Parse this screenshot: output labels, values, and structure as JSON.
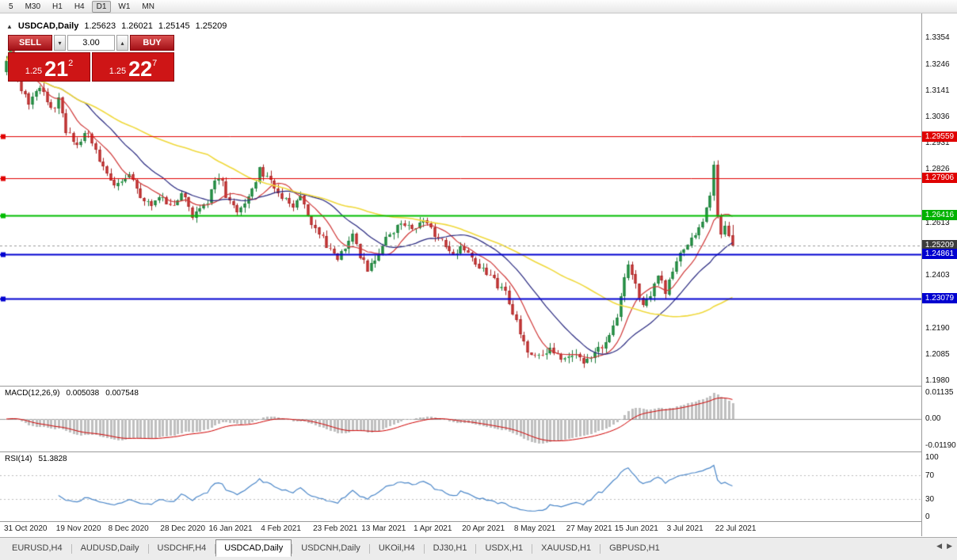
{
  "toolbar": {
    "timeframes": [
      {
        "label": "5",
        "active": false
      },
      {
        "label": "M30",
        "active": false
      },
      {
        "label": "H1",
        "active": false
      },
      {
        "label": "H4",
        "active": false
      },
      {
        "label": "D1",
        "active": true
      },
      {
        "label": "W1",
        "active": false
      },
      {
        "label": "MN",
        "active": false
      }
    ]
  },
  "icons": {
    "collapse": "▲",
    "chevron_up": "▴",
    "chevron_down": "▾",
    "scroll_left": "◀",
    "scroll_right": "▶"
  },
  "chart": {
    "title": "USDCAD,Daily",
    "ohlc": {
      "open": "1.25623",
      "high": "1.26021",
      "low": "1.25145",
      "close": "1.25209"
    }
  },
  "trade_panel": {
    "sell_label": "SELL",
    "buy_label": "BUY",
    "volume": "3.00",
    "sell_price": {
      "prefix": "1.25",
      "big": "21",
      "sup": "2"
    },
    "buy_price": {
      "prefix": "1.25",
      "big": "22",
      "sup": "7"
    }
  },
  "indicators": {
    "macd": {
      "name": "MACD(12,26,9)",
      "value_main": "0.005038",
      "value_signal": "0.007548",
      "axis": [
        "0.01135",
        "0.00",
        "-0.01190"
      ]
    },
    "rsi": {
      "name": "RSI(14)",
      "value": "51.3828",
      "axis": [
        "100",
        "70",
        "30",
        "0"
      ]
    }
  },
  "price_axis": {
    "ticks": [
      {
        "label": "1.3354",
        "value": 1.3354
      },
      {
        "label": "1.3246",
        "value": 1.3246
      },
      {
        "label": "1.3141",
        "value": 1.3141
      },
      {
        "label": "1.3036",
        "value": 1.3036
      },
      {
        "label": "1.2931",
        "value": 1.2931
      },
      {
        "label": "1.2826",
        "value": 1.2826
      },
      {
        "label": "1.2613",
        "value": 1.2613
      },
      {
        "label": "1.2403",
        "value": 1.2403
      },
      {
        "label": "1.2190",
        "value": 1.219
      },
      {
        "label": "1.2085",
        "value": 1.2085
      },
      {
        "label": "1.1980",
        "value": 1.198
      }
    ],
    "tags": [
      {
        "label": "1.29559",
        "value": 1.29559,
        "color": "#e00000"
      },
      {
        "label": "1.27906",
        "value": 1.27906,
        "color": "#e00000"
      },
      {
        "label": "1.26416",
        "value": 1.26416,
        "color": "#00b200"
      },
      {
        "label": "1.25209",
        "value": 1.25209,
        "color": "#3c3c3c"
      },
      {
        "label": "1.24861",
        "value": 1.24861,
        "color": "#0000d0"
      },
      {
        "label": "1.23079",
        "value": 1.23079,
        "color": "#0000d0"
      }
    ]
  },
  "tabs": [
    {
      "label": "EURUSD,H4",
      "active": false
    },
    {
      "label": "AUDUSD,Daily",
      "active": false
    },
    {
      "label": "USDCHF,H4",
      "active": false
    },
    {
      "label": "USDCAD,Daily",
      "active": true
    },
    {
      "label": "USDCNH,Daily",
      "active": false
    },
    {
      "label": "UKOil,H4",
      "active": false
    },
    {
      "label": "DJ30,H1",
      "active": false
    },
    {
      "label": "USDX,H1",
      "active": false
    },
    {
      "label": "XAUUSD,H1",
      "active": false
    },
    {
      "label": "GBPUSD,H1",
      "active": false
    }
  ],
  "chart_data": {
    "type": "candlestick",
    "symbol": "USDCAD",
    "timeframe": "Daily",
    "current_ohlc": {
      "open": 1.25623,
      "high": 1.26021,
      "low": 1.25145,
      "close": 1.25209
    },
    "ylim": [
      1.1958,
      1.3449
    ],
    "num_candles": 196,
    "price_path": [
      [
        0,
        1.3215
      ],
      [
        2,
        1.333
      ],
      [
        4,
        1.318
      ],
      [
        7,
        1.309
      ],
      [
        10,
        1.316
      ],
      [
        13,
        1.306
      ],
      [
        15,
        1.31
      ],
      [
        17,
        1.298
      ],
      [
        20,
        1.2915
      ],
      [
        23,
        1.2975
      ],
      [
        26,
        1.287
      ],
      [
        28,
        1.28
      ],
      [
        31,
        1.276
      ],
      [
        34,
        1.2815
      ],
      [
        37,
        1.272
      ],
      [
        40,
        1.2685
      ],
      [
        42,
        1.2725
      ],
      [
        45,
        1.267
      ],
      [
        48,
        1.2735
      ],
      [
        51,
        1.2645
      ],
      [
        55,
        1.27
      ],
      [
        58,
        1.28
      ],
      [
        60,
        1.2725
      ],
      [
        63,
        1.2645
      ],
      [
        66,
        1.272
      ],
      [
        69,
        1.282
      ],
      [
        72,
        1.278
      ],
      [
        75,
        1.2705
      ],
      [
        78,
        1.268
      ],
      [
        80,
        1.272
      ],
      [
        82,
        1.2625
      ],
      [
        85,
        1.2565
      ],
      [
        88,
        1.2505
      ],
      [
        90,
        1.2465
      ],
      [
        92,
        1.252
      ],
      [
        94,
        1.258
      ],
      [
        96,
        1.2485
      ],
      [
        98,
        1.2415
      ],
      [
        100,
        1.2475
      ],
      [
        102,
        1.252
      ],
      [
        105,
        1.258
      ],
      [
        108,
        1.2605
      ],
      [
        110,
        1.2585
      ],
      [
        113,
        1.2625
      ],
      [
        116,
        1.2565
      ],
      [
        119,
        1.2525
      ],
      [
        121,
        1.2485
      ],
      [
        123,
        1.2505
      ],
      [
        126,
        1.2475
      ],
      [
        129,
        1.2425
      ],
      [
        132,
        1.2375
      ],
      [
        135,
        1.2325
      ],
      [
        137,
        1.2255
      ],
      [
        139,
        1.2165
      ],
      [
        141,
        1.2105
      ],
      [
        144,
        1.2075
      ],
      [
        147,
        1.2115
      ],
      [
        150,
        1.2055
      ],
      [
        153,
        1.2085
      ],
      [
        156,
        1.2045
      ],
      [
        159,
        1.2085
      ],
      [
        162,
        1.2125
      ],
      [
        164,
        1.2185
      ],
      [
        166,
        1.2305
      ],
      [
        168,
        1.2455
      ],
      [
        170,
        1.2355
      ],
      [
        172,
        1.2285
      ],
      [
        174,
        1.2325
      ],
      [
        176,
        1.2405
      ],
      [
        178,
        1.2325
      ],
      [
        180,
        1.2425
      ],
      [
        182,
        1.2485
      ],
      [
        184,
        1.2525
      ],
      [
        186,
        1.2565
      ],
      [
        188,
        1.2625
      ],
      [
        190,
        1.2705
      ],
      [
        191,
        1.284
      ],
      [
        192,
        1.2625
      ],
      [
        193,
        1.2575
      ],
      [
        194,
        1.26
      ],
      [
        195,
        1.2565
      ]
    ],
    "horizontal_lines": [
      {
        "value": 1.29559,
        "color": "#e00000",
        "width": 1
      },
      {
        "value": 1.27906,
        "color": "#e00000",
        "width": 1
      },
      {
        "value": 1.26416,
        "color": "#00bb00",
        "width": 2
      },
      {
        "value": 1.24861,
        "color": "#0000d0",
        "width": 2
      },
      {
        "value": 1.23079,
        "color": "#0000d0",
        "width": 2
      }
    ],
    "candle_colors": {
      "up_fill": "#2fa14f",
      "up_stroke": "#1b7a38",
      "down_fill": "#dc4444",
      "down_stroke": "#a52222"
    },
    "moving_averages": [
      {
        "period": 9,
        "color": "#cf3636"
      },
      {
        "period": 22,
        "color": "#26267e"
      },
      {
        "period": 55,
        "color": "#efd83a"
      }
    ],
    "macd": {
      "fast": 12,
      "slow": 26,
      "signal": 9,
      "histogram_color": "#bfbfbf",
      "signal_color": "#cf0000",
      "zero_line_color": "#9a9a9a"
    },
    "rsi": {
      "period": 14,
      "color": "#4a86c8",
      "levels": [
        70,
        30
      ],
      "level_color": "#bcbcbc"
    },
    "x_axis": [
      {
        "label": "31 Oct 2020",
        "i": 0
      },
      {
        "label": "19 Nov 2020",
        "i": 14
      },
      {
        "label": "8 Dec 2020",
        "i": 28
      },
      {
        "label": "28 Dec 2020",
        "i": 42
      },
      {
        "label": "16 Jan 2021",
        "i": 55
      },
      {
        "label": "4 Feb 2021",
        "i": 69
      },
      {
        "label": "23 Feb 2021",
        "i": 83
      },
      {
        "label": "13 Mar 2021",
        "i": 96
      },
      {
        "label": "1 Apr 2021",
        "i": 110
      },
      {
        "label": "20 Apr 2021",
        "i": 123
      },
      {
        "label": "8 May 2021",
        "i": 137
      },
      {
        "label": "27 May 2021",
        "i": 151
      },
      {
        "label": "15 Jun 2021",
        "i": 164
      },
      {
        "label": "3 Jul 2021",
        "i": 178
      },
      {
        "label": "22 Jul 2021",
        "i": 191
      }
    ]
  }
}
